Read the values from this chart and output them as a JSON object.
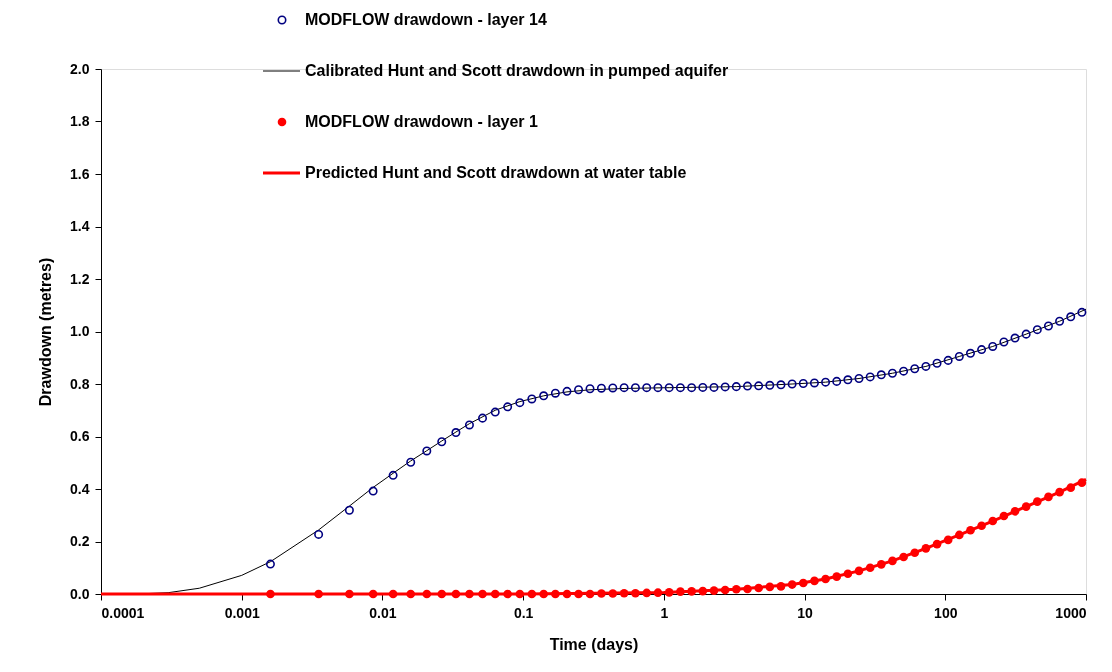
{
  "chart_data": {
    "type": "scatter",
    "xlabel": "Time (days)",
    "ylabel": "Drawdown (metres)",
    "log": "x",
    "grid": false,
    "legend": "top",
    "xlim": [
      0.0001,
      1000
    ],
    "xticks": [
      0.0001,
      0.001,
      0.01,
      0.1,
      1,
      10,
      100,
      1000
    ],
    "ylim": [
      0,
      2.0
    ],
    "yticks": [
      {
        "value": 0,
        "label": "0.0"
      },
      {
        "value": 0.2,
        "label": "0.2"
      },
      {
        "value": 0.4,
        "label": "0.4"
      },
      {
        "value": 0.6,
        "label": "0.6"
      },
      {
        "value": 0.8,
        "label": "0.8"
      },
      {
        "value": 1.0,
        "label": "1.0"
      },
      {
        "value": 1.2,
        "label": "1.2"
      },
      {
        "value": 1.4,
        "label": "1.4"
      },
      {
        "value": 1.6,
        "label": "1.6"
      },
      {
        "value": 1.8,
        "label": "1.8"
      },
      {
        "value": 2.0,
        "label": "2.0"
      }
    ],
    "series": [
      {
        "name": "MODFLOW drawdown - layer 14",
        "marker": "circle",
        "color": "#000080",
        "x": [
          0.0016,
          0.00352,
          0.005824,
          0.008589,
          0.01191,
          0.01589,
          0.02067,
          0.0264,
          0.03328,
          0.04153,
          0.05144,
          0.06333,
          0.0776,
          0.09471,
          0.1153,
          0.1399,
          0.1695,
          0.205,
          0.2476,
          0.2987,
          0.36,
          0.4336,
          0.522,
          0.628,
          0.7552,
          0.9078,
          1.091,
          1.311,
          1.575,
          1.891,
          2.271,
          2.727,
          3.273,
          3.93,
          4.717,
          5.662,
          6.796,
          8.157,
          9.79,
          11.75,
          14.1,
          16.92,
          20.31,
          24.37,
          29.25,
          35.1,
          42.12,
          50.55,
          60.66,
          72.8,
          87.36,
          104.8,
          125.8,
          151,
          181.2,
          217.4,
          260.9,
          313,
          375.6,
          450.8,
          540.9,
          649.1,
          778.9,
          934.7
        ],
        "values": [
          0.114,
          0.227,
          0.319,
          0.392,
          0.452,
          0.502,
          0.545,
          0.58,
          0.615,
          0.644,
          0.67,
          0.693,
          0.713,
          0.729,
          0.743,
          0.755,
          0.765,
          0.772,
          0.778,
          0.782,
          0.784,
          0.785,
          0.786,
          0.786,
          0.786,
          0.786,
          0.786,
          0.786,
          0.786,
          0.787,
          0.787,
          0.789,
          0.79,
          0.792,
          0.793,
          0.795,
          0.797,
          0.8,
          0.802,
          0.804,
          0.807,
          0.81,
          0.816,
          0.821,
          0.827,
          0.835,
          0.841,
          0.849,
          0.858,
          0.867,
          0.879,
          0.89,
          0.905,
          0.917,
          0.931,
          0.943,
          0.96,
          0.975,
          0.99,
          1.007,
          1.021,
          1.039,
          1.056,
          1.073
        ]
      },
      {
        "name": "Calibrated Hunt and Scott drawdown in pumped aquifer",
        "type": "line",
        "color": "#000000",
        "x": [
          0.0001,
          0.0002,
          0.0003,
          0.0005,
          0.001,
          0.0016,
          0.00352,
          0.005824,
          0.008589,
          0.01191,
          0.01589,
          0.02067,
          0.0264,
          0.03328,
          0.04153,
          0.06333,
          0.09471,
          0.1399,
          0.205,
          0.2987,
          0.522,
          1.091,
          3.273,
          8.157,
          14.1,
          24.37,
          42.12,
          72.8,
          125.8,
          217.4,
          375.6,
          649.1,
          1000
        ],
        "values": [
          0,
          0.001,
          0.005,
          0.022,
          0.071,
          0.123,
          0.244,
          0.335,
          0.406,
          0.46,
          0.507,
          0.546,
          0.583,
          0.617,
          0.649,
          0.7,
          0.733,
          0.755,
          0.77,
          0.778,
          0.783,
          0.786,
          0.79,
          0.8,
          0.807,
          0.821,
          0.841,
          0.867,
          0.905,
          0.943,
          0.99,
          1.039,
          1.085
        ]
      },
      {
        "name": "MODFLOW drawdown - layer 1",
        "marker": "circle",
        "color": "#ff0000",
        "x": [
          0.0016,
          0.00352,
          0.005824,
          0.008589,
          0.01191,
          0.01589,
          0.02067,
          0.0264,
          0.03328,
          0.04153,
          0.05144,
          0.06333,
          0.0776,
          0.09471,
          0.1153,
          0.1399,
          0.1695,
          0.205,
          0.2476,
          0.2987,
          0.36,
          0.4336,
          0.522,
          0.628,
          0.7552,
          0.9078,
          1.091,
          1.311,
          1.575,
          1.891,
          2.271,
          2.727,
          3.273,
          3.93,
          4.717,
          5.662,
          6.796,
          8.157,
          9.79,
          11.75,
          14.1,
          16.92,
          20.31,
          24.37,
          29.25,
          35.1,
          42.12,
          50.55,
          60.66,
          72.8,
          87.36,
          104.8,
          125.8,
          151,
          181.2,
          217.4,
          260.9,
          313,
          375.6,
          450.8,
          540.9,
          649.1,
          778.9,
          934.7
        ],
        "values": [
          0,
          0,
          0,
          0,
          0,
          0,
          0,
          0,
          0,
          0,
          0,
          0,
          0,
          0,
          0,
          0,
          0,
          0,
          0,
          0,
          0.002,
          0.002,
          0.003,
          0.003,
          0.004,
          0.005,
          0.006,
          0.009,
          0.01,
          0.011,
          0.013,
          0.015,
          0.018,
          0.019,
          0.023,
          0.027,
          0.029,
          0.036,
          0.042,
          0.05,
          0.057,
          0.066,
          0.077,
          0.088,
          0.1,
          0.113,
          0.126,
          0.141,
          0.157,
          0.174,
          0.19,
          0.206,
          0.225,
          0.243,
          0.26,
          0.278,
          0.297,
          0.315,
          0.333,
          0.352,
          0.37,
          0.388,
          0.405,
          0.424
        ]
      },
      {
        "name": "Predicted Hunt and Scott drawdown at water table",
        "type": "line",
        "color": "#ff0000",
        "x": [
          0.0001,
          0.1,
          1,
          3.273,
          8.157,
          14.1,
          24.37,
          42.12,
          72.8,
          125.8,
          217.4,
          375.6,
          649.1,
          1000
        ],
        "values": [
          0,
          0,
          0.006,
          0.018,
          0.036,
          0.057,
          0.088,
          0.126,
          0.174,
          0.225,
          0.278,
          0.333,
          0.388,
          0.437
        ]
      }
    ]
  }
}
